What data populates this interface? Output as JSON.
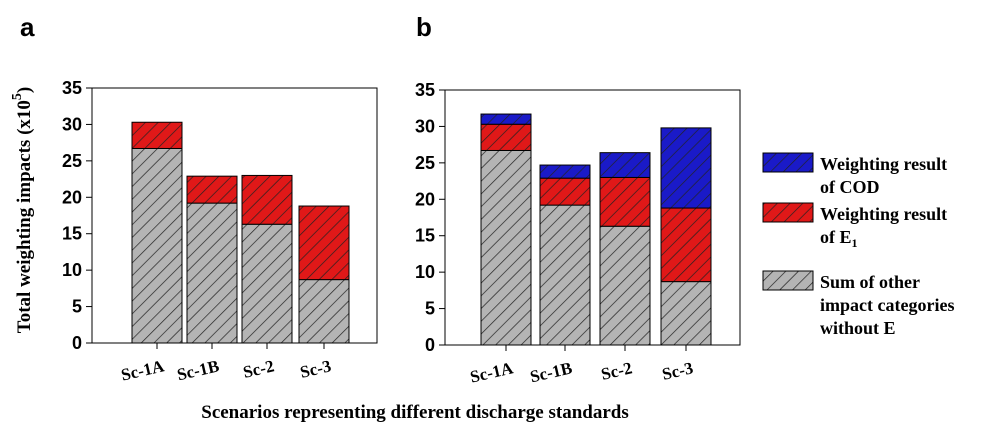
{
  "figure": {
    "xlabel": "Scenarios representing different discharge standards",
    "ylabel_main": "Total weighting impacts (x10",
    "ylabel_exp": "5",
    "ylabel_close": ")"
  },
  "legend": [
    {
      "lines": [
        "Weighting result",
        "of COD"
      ],
      "color": "#1a1ac8"
    },
    {
      "lines": [
        "Weighting result",
        "of E"
      ],
      "sub": "1",
      "color": "#e01818"
    },
    {
      "lines": [
        "Sum of other",
        "impact categories",
        "without E"
      ],
      "color": "#b4b4b4"
    }
  ],
  "chart_data": [
    {
      "panel": "a",
      "type": "bar",
      "stacked": true,
      "categories": [
        "Sc-1A",
        "Sc-1B",
        "Sc-2",
        "Sc-3"
      ],
      "series": [
        {
          "key": "other",
          "values": [
            26.7,
            19.2,
            16.3,
            8.7
          ],
          "color": "#b4b4b4"
        },
        {
          "key": "e1",
          "values": [
            3.6,
            3.7,
            6.7,
            10.1
          ],
          "color": "#e01818"
        }
      ],
      "ylim": [
        0,
        35
      ],
      "yticks": [
        0,
        5,
        10,
        15,
        20,
        25,
        30,
        35
      ],
      "grid": false
    },
    {
      "panel": "b",
      "type": "bar",
      "stacked": true,
      "categories": [
        "Sc-1A",
        "Sc-1B",
        "Sc-2",
        "Sc-3"
      ],
      "series": [
        {
          "key": "other",
          "values": [
            26.7,
            19.2,
            16.3,
            8.7
          ],
          "color": "#b4b4b4"
        },
        {
          "key": "e1",
          "values": [
            3.6,
            3.7,
            6.7,
            10.1
          ],
          "color": "#e01818"
        },
        {
          "key": "cod",
          "values": [
            1.4,
            1.8,
            3.4,
            11.0
          ],
          "color": "#1a1ac8"
        }
      ],
      "ylim": [
        0,
        35
      ],
      "yticks": [
        0,
        5,
        10,
        15,
        20,
        25,
        30,
        35
      ],
      "grid": false
    }
  ]
}
